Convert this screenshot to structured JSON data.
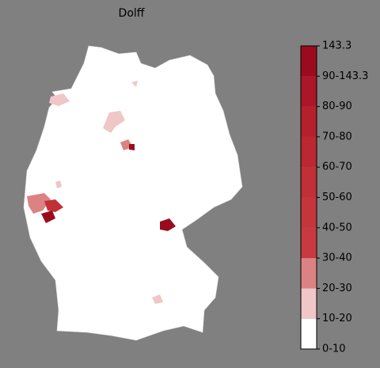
{
  "title": "Dolff",
  "legend": {
    "labels": [
      "0-10",
      "10-20",
      "20-30",
      "30-40",
      "40-50",
      "50-60",
      "60-70",
      "70-80",
      "80-90",
      "90-143.3",
      "143.3"
    ],
    "colors": [
      "#ffffff",
      "#f0c6c6",
      "#dc8282",
      "#c83a3f",
      "#c5363b",
      "#c13037",
      "#bb2832",
      "#b4202c",
      "#ab1628",
      "#9b0b1e"
    ]
  }
}
